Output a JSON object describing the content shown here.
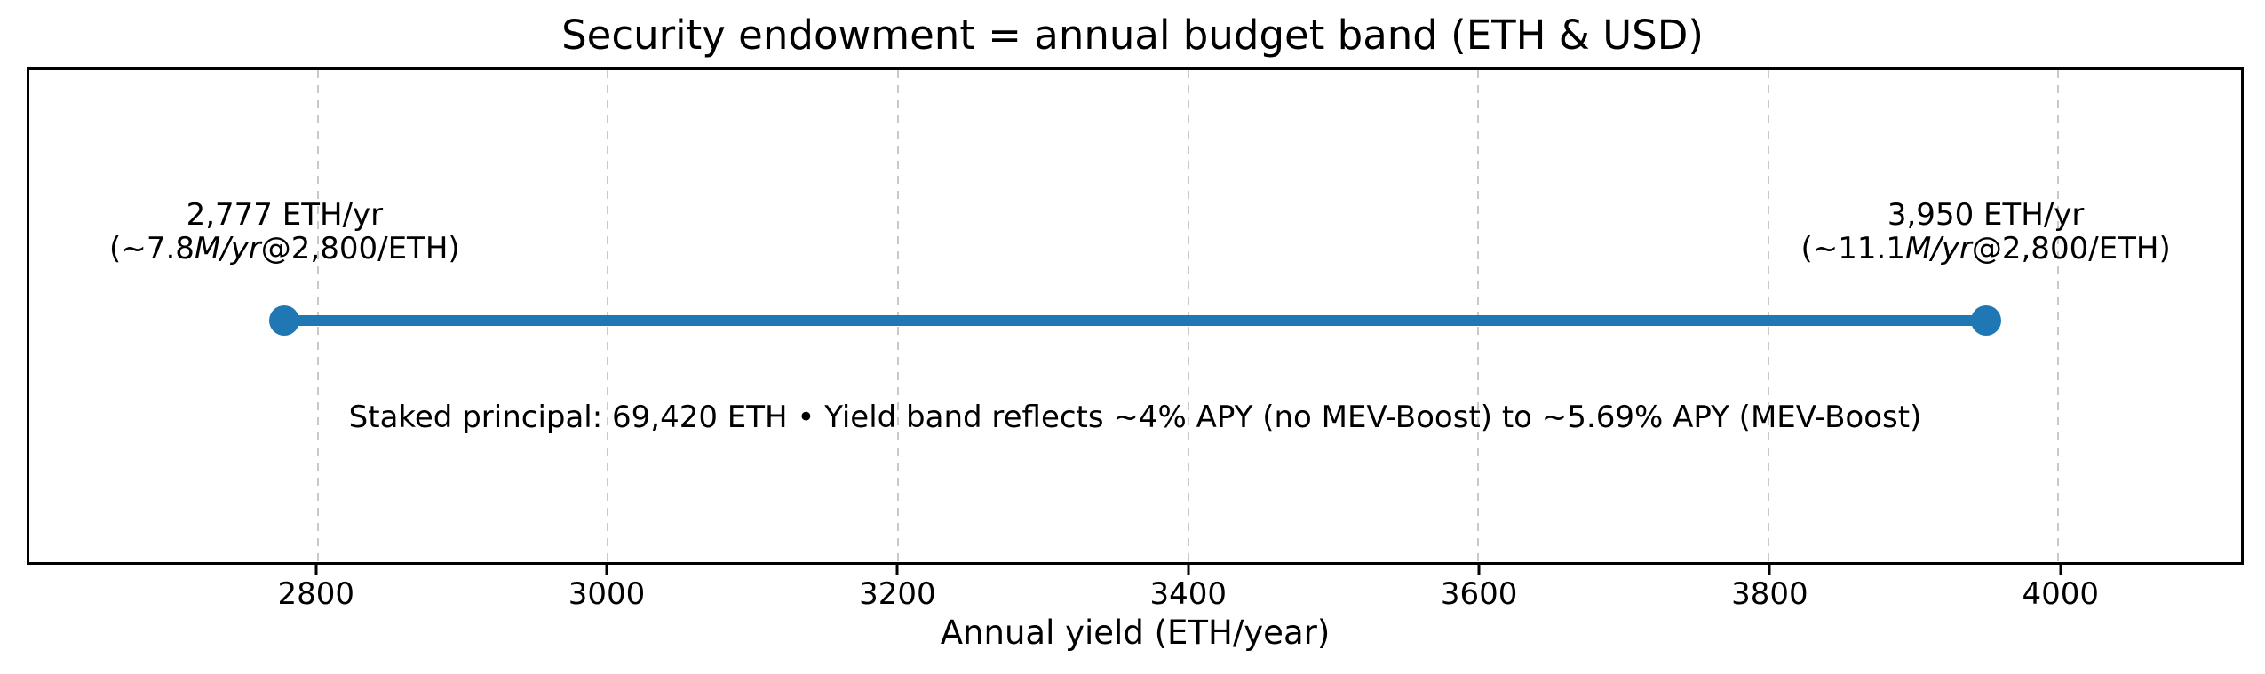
{
  "chart_data": {
    "type": "line",
    "variant": "horizontal-range-band",
    "title": "Security endowment = annual budget band (ETH & USD)",
    "xlabel": "Annual yield (ETH/year)",
    "xlim": [
      2601,
      4126
    ],
    "xticks": [
      2800,
      3000,
      3200,
      3400,
      3600,
      3800,
      4000
    ],
    "grid": "vertical-dashed",
    "legend": "none",
    "band": {
      "start_eth_per_yr": 2777,
      "end_eth_per_yr": 3950,
      "start_label": {
        "line1": "2,777 ETH/yr",
        "line2_segments": [
          {
            "t": "(~",
            "italic": false
          },
          {
            "t": "7.8",
            "italic": false
          },
          {
            "t": "M/yr",
            "italic": true
          },
          {
            "t": "@",
            "italic": false
          },
          {
            "t": "2,800/ETH)",
            "italic": false
          }
        ]
      },
      "end_label": {
        "line1": "3,950 ETH/yr",
        "line2_segments": [
          {
            "t": "(~",
            "italic": false
          },
          {
            "t": "11.1",
            "italic": false
          },
          {
            "t": "M/yr",
            "italic": true
          },
          {
            "t": "@",
            "italic": false
          },
          {
            "t": "2,800/ETH)",
            "italic": false
          }
        ]
      },
      "usd_low_m_per_yr": 7.8,
      "usd_high_m_per_yr": 11.1,
      "eth_price_usd": 2800
    },
    "annotation": "Staked principal: 69,420 ETH • Yield band reflects ~4% APY (no MEV-Boost) to ~5.69% APY (MEV-Boost)",
    "colors": {
      "band": "#1f77b4",
      "grid": "#c9c9c9",
      "spine": "#000000",
      "text": "#000000"
    }
  }
}
